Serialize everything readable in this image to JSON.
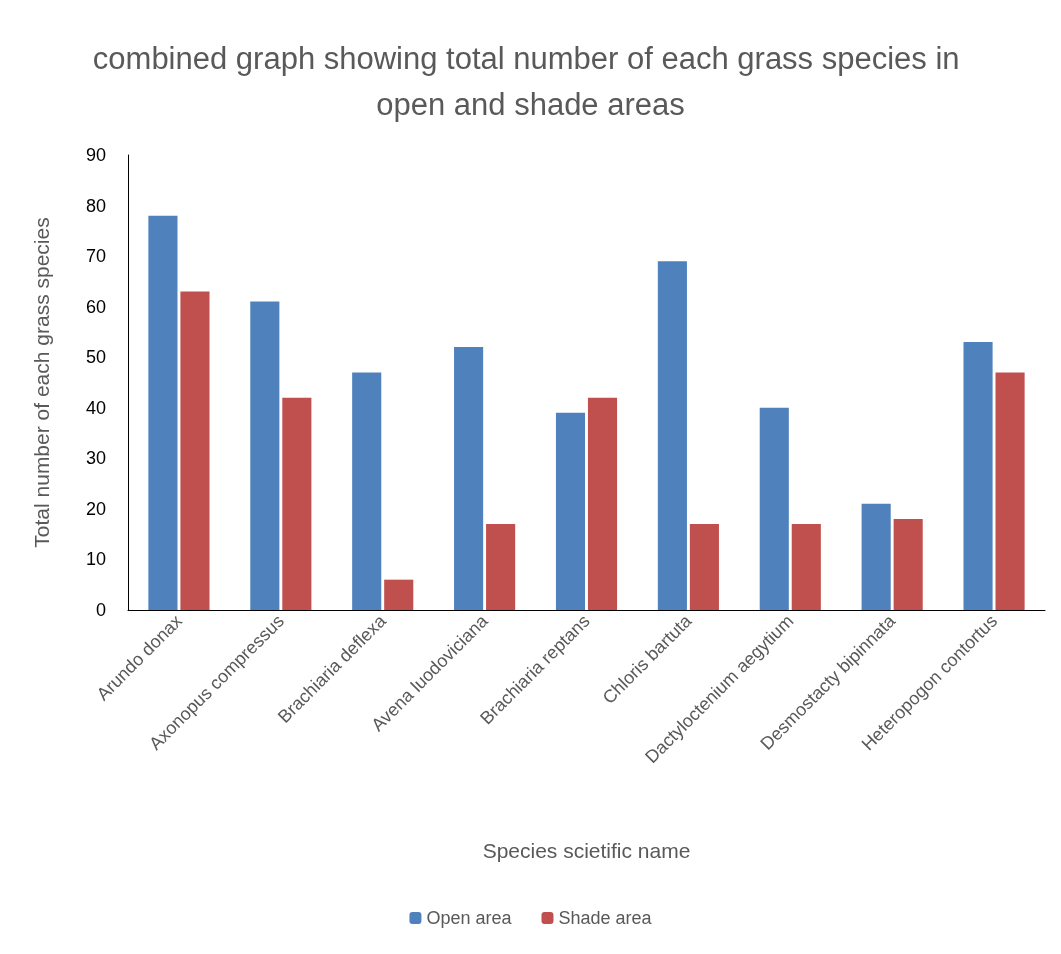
{
  "chart_data": {
    "type": "bar",
    "title": "combined graph showing total number of each grass species in open and shade areas",
    "xlabel": "Species scietific name",
    "ylabel": "Total number of each grass species",
    "categories": [
      "Arundo donax",
      "Axonopus compressus",
      "Brachiaria deflexa",
      "Avena luodoviciana",
      "Brachiaria reptans",
      "Chloris bartuta",
      "Dactyloctenium aegytium",
      "Desmostacty bipinnata",
      "Heteropogon contortus"
    ],
    "series": [
      {
        "name": "Open area",
        "color": "#4f81bd",
        "values": [
          78,
          61,
          47,
          52,
          39,
          69,
          40,
          21,
          53
        ]
      },
      {
        "name": "Shade area",
        "color": "#c0504d",
        "values": [
          63,
          42,
          6,
          17,
          42,
          17,
          17,
          18,
          47
        ]
      }
    ],
    "ylim": [
      0,
      90
    ],
    "yticks": [
      0,
      10,
      20,
      30,
      40,
      50,
      60,
      70,
      80,
      90
    ],
    "grid": false,
    "legend": "bottom"
  }
}
